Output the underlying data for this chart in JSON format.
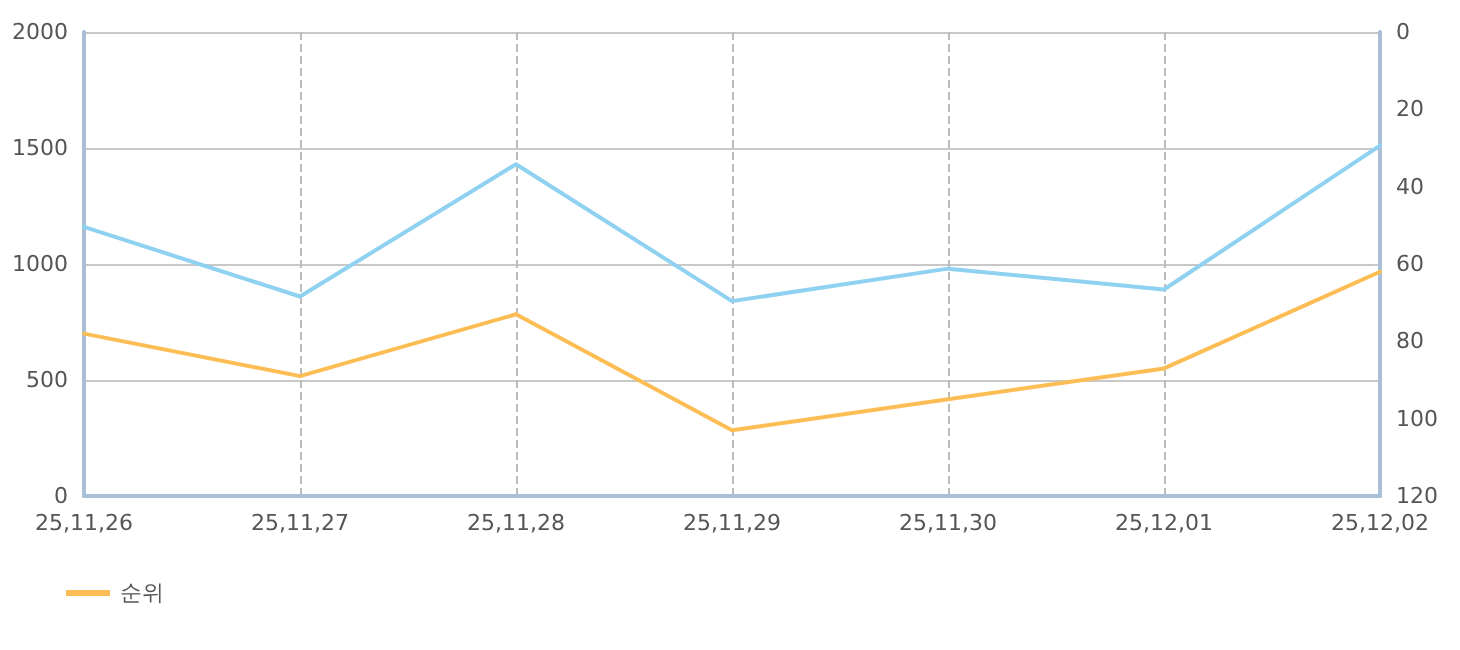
{
  "chart_data": {
    "type": "line",
    "categories": [
      "25,11,26",
      "25,11,27",
      "25,11,28",
      "25,11,29",
      "25,11,30",
      "25,12,01",
      "25,12,02"
    ],
    "series": [
      {
        "color": "#8fd1f0",
        "values": [
          1160,
          860,
          1430,
          840,
          980,
          890,
          1510
        ]
      },
      {
        "name": "순위",
        "color": "#fdbd55",
        "axis": "y2",
        "values": [
          78,
          89,
          73,
          103,
          95,
          87,
          62
        ]
      }
    ],
    "ylim": [
      0,
      2000
    ],
    "yticks": [
      0,
      500,
      1000,
      1500,
      2000
    ],
    "y2lim": [
      120,
      0
    ],
    "y2ticks": [
      0,
      20,
      40,
      60,
      80,
      100,
      120
    ],
    "grid": true,
    "legend": "bottom left",
    "marker": "none",
    "line_style": "solid"
  }
}
